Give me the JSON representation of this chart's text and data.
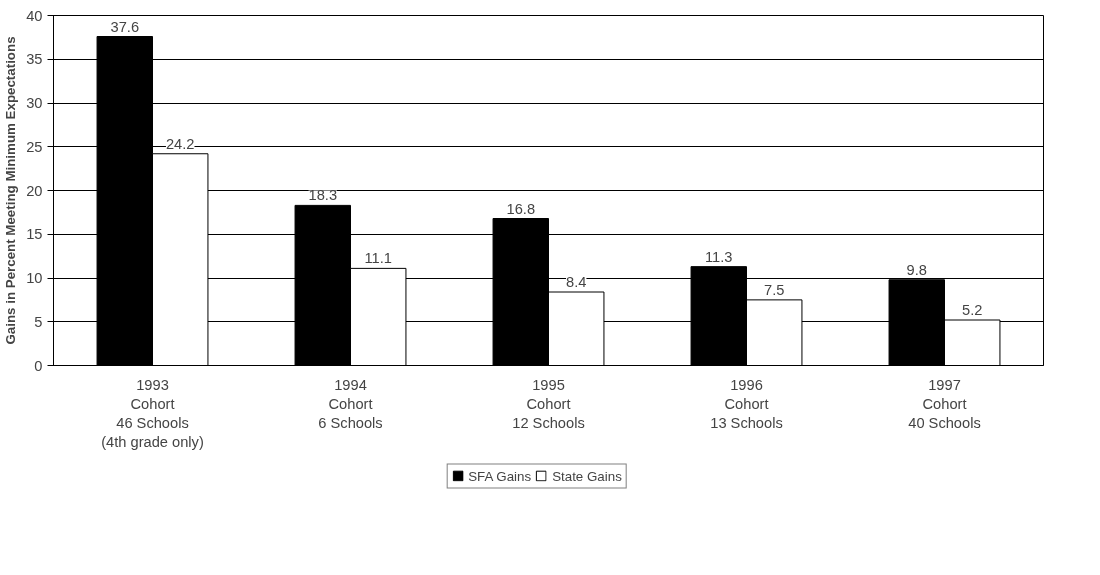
{
  "chart_data": {
    "type": "bar",
    "ylabel": "Gains in Percent Meeting Minimum Expectations",
    "categories": [
      "1993\nCohort\n46 Schools\n(4th grade only)",
      "1994\nCohort\n6 Schools",
      "1995\nCohort\n12 Schools",
      "1996\nCohort\n13 Schools",
      "1997\nCohort\n40 Schools"
    ],
    "series": [
      {
        "name": "SFA Gains",
        "color": "#000000",
        "values": [
          37.6,
          18.3,
          16.8,
          11.3,
          9.8
        ]
      },
      {
        "name": "State Gains",
        "color": "#ffffff",
        "values": [
          24.2,
          11.1,
          8.4,
          7.5,
          5.2
        ]
      }
    ],
    "ylim": [
      0,
      40
    ],
    "yticks": [
      0,
      5,
      10,
      15,
      20,
      25,
      30,
      35,
      40
    ],
    "grid": "y",
    "legend": "bottom",
    "data_labels": true
  }
}
